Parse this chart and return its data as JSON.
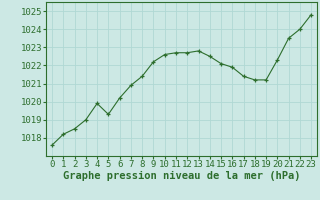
{
  "x": [
    0,
    1,
    2,
    3,
    4,
    5,
    6,
    7,
    8,
    9,
    10,
    11,
    12,
    13,
    14,
    15,
    16,
    17,
    18,
    19,
    20,
    21,
    22,
    23
  ],
  "y": [
    1017.6,
    1018.2,
    1018.5,
    1019.0,
    1019.9,
    1019.3,
    1020.2,
    1020.9,
    1021.4,
    1022.2,
    1022.6,
    1022.7,
    1022.7,
    1022.8,
    1022.5,
    1022.1,
    1021.9,
    1021.4,
    1021.2,
    1021.2,
    1022.3,
    1023.5,
    1024.0,
    1024.8
  ],
  "xlim": [
    -0.5,
    23.5
  ],
  "ylim": [
    1017.0,
    1025.5
  ],
  "yticks": [
    1018,
    1019,
    1020,
    1021,
    1022,
    1023,
    1024,
    1025
  ],
  "xticks": [
    0,
    1,
    2,
    3,
    4,
    5,
    6,
    7,
    8,
    9,
    10,
    11,
    12,
    13,
    14,
    15,
    16,
    17,
    18,
    19,
    20,
    21,
    22,
    23
  ],
  "xlabel": "Graphe pression niveau de la mer (hPa)",
  "line_color": "#2d6e2d",
  "marker_color": "#2d6e2d",
  "bg_color": "#cce8e4",
  "grid_color": "#b0d8d4",
  "axis_color": "#2d6e2d",
  "tick_color": "#2d6e2d",
  "xlabel_color": "#2d6e2d",
  "xlabel_fontsize": 7.5,
  "tick_fontsize": 6.5
}
